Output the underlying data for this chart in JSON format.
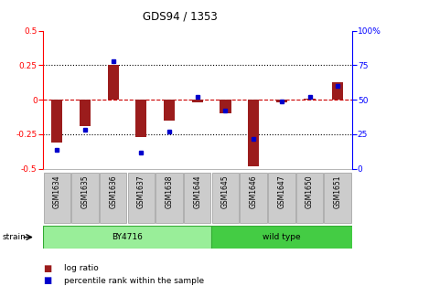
{
  "title": "GDS94 / 1353",
  "samples": [
    "GSM1634",
    "GSM1635",
    "GSM1636",
    "GSM1637",
    "GSM1638",
    "GSM1644",
    "GSM1645",
    "GSM1646",
    "GSM1647",
    "GSM1650",
    "GSM1651"
  ],
  "log_ratio": [
    -0.31,
    -0.19,
    0.25,
    -0.27,
    -0.15,
    -0.02,
    -0.1,
    -0.48,
    -0.02,
    0.01,
    0.13
  ],
  "percentile": [
    14,
    28,
    78,
    12,
    27,
    52,
    42,
    22,
    49,
    52,
    60
  ],
  "ylim_left": [
    -0.5,
    0.5
  ],
  "ylim_right": [
    0,
    100
  ],
  "yticks_left": [
    -0.5,
    -0.25,
    0.0,
    0.25,
    0.5
  ],
  "yticks_right": [
    0,
    25,
    50,
    75,
    100
  ],
  "hlines_dotted": [
    0.25,
    -0.25
  ],
  "hline_dashed": 0.0,
  "bar_color": "#9b1c1c",
  "dot_color": "#0000cc",
  "zero_line_color": "#cc0000",
  "strain_groups": [
    {
      "label": "BY4716",
      "start": 0,
      "end": 5,
      "color": "#99ee99"
    },
    {
      "label": "wild type",
      "start": 6,
      "end": 10,
      "color": "#44cc44"
    }
  ],
  "strain_label": "strain",
  "legend_log_ratio": "log ratio",
  "legend_percentile": "percentile rank within the sample",
  "background_color": "#ffffff"
}
